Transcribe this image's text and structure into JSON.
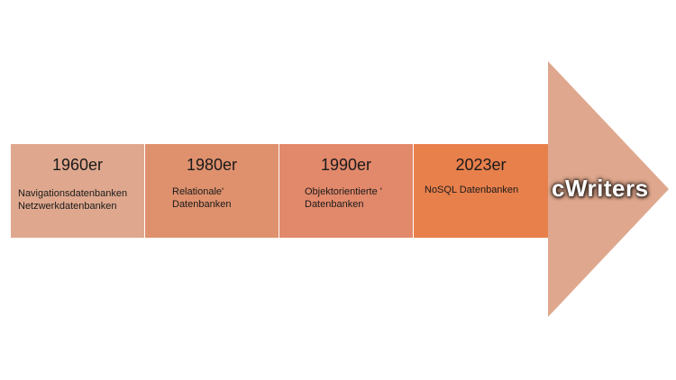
{
  "timeline": {
    "segments": [
      {
        "year": "1960er",
        "lines": [
          "Navigationsdatenbanken",
          "Netzwerkdatenbanken"
        ],
        "color": "#dfa88e"
      },
      {
        "year": "1980er",
        "lines": [
          "Relationale'",
          "Datenbanken"
        ],
        "color": "#df916e"
      },
      {
        "year": "1990er",
        "lines": [
          "Objektorientierte '",
          "Datenbanken"
        ],
        "color": "#e2896b"
      },
      {
        "year": "2023er",
        "lines": [
          "NoSQL Datenbanken"
        ],
        "color": "#e8804c"
      }
    ],
    "arrow_head_color": "#dfa88e",
    "logo_text": "cWriters",
    "logo_icon": "cwriters-logo"
  }
}
